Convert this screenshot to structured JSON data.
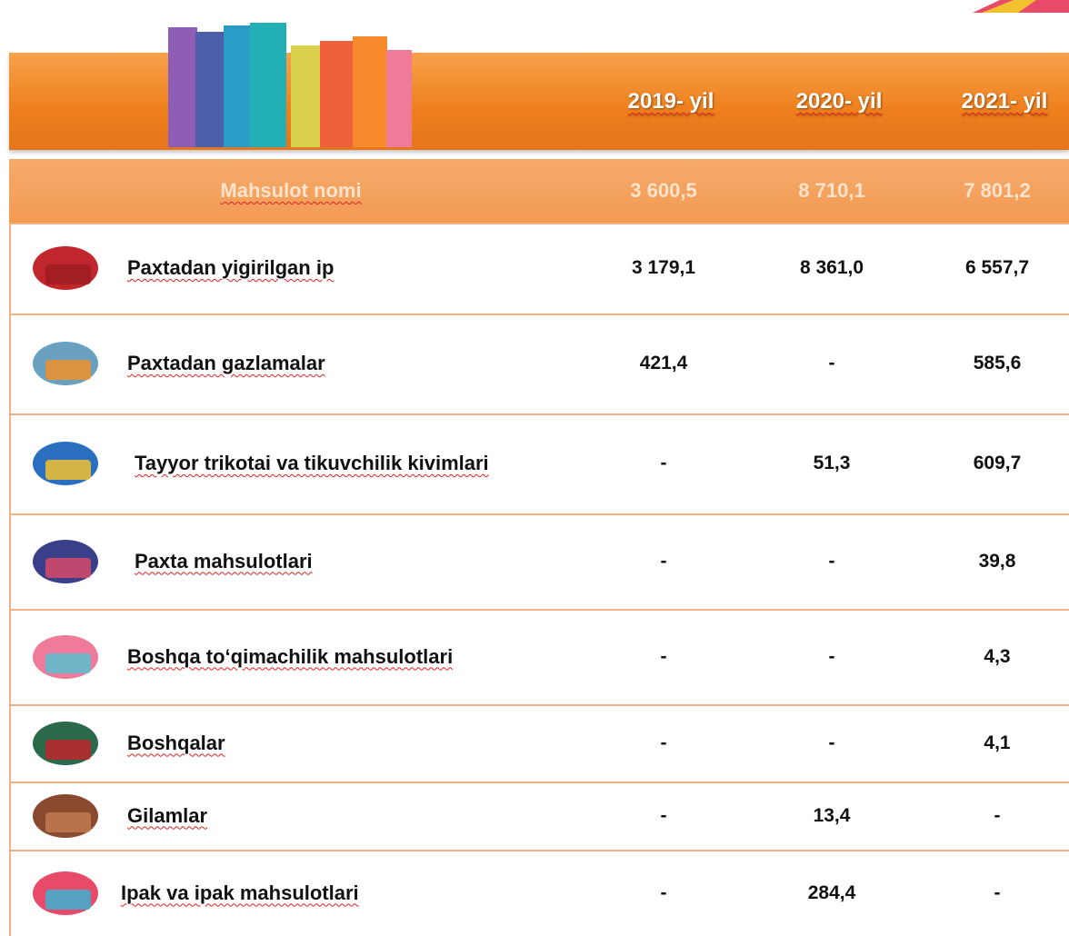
{
  "header": {
    "columns": [
      "2019- yil",
      "2020- yil",
      "2021- yil"
    ]
  },
  "summary": {
    "label": "Mahsulot nomi",
    "values": [
      "3 600,5",
      "8 710,1",
      "7 801,2"
    ]
  },
  "table": {
    "rows": [
      [
        "Paxtadan yigirilgan ip",
        "3 179,1",
        "8 361,0",
        "6 557,7"
      ],
      [
        "Paxtadan gazlamalar",
        "421,4",
        "-",
        "585,6"
      ],
      [
        "Tayyor trikotai va tikuvchilik kivimlari",
        "-",
        "51,3",
        "609,7"
      ],
      [
        "Paxta  mahsulotlari",
        "-",
        "-",
        "39,8"
      ],
      [
        "Boshqa to‘qimachilik mahsulotlari",
        "-",
        "-",
        "4,3"
      ],
      [
        "Boshqalar",
        "-",
        "-",
        "4,1"
      ],
      [
        "Gilamlar",
        "-",
        "13,4",
        "-"
      ],
      [
        "Ipak va ipak mahsulotlari",
        "-",
        "284,4",
        "-"
      ]
    ]
  }
}
